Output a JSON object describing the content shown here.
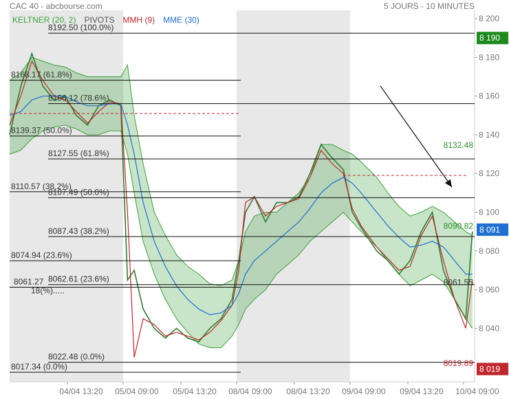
{
  "chart_data": {
    "type": "line",
    "title": "CAC 40 - abcbourse.com",
    "subtitle": "5 JOURS - 10 MINUTES",
    "pivots_label": "PIVOTS",
    "pivots_color": "#555555",
    "xlim": [
      0,
      209
    ],
    "ylim": [
      8012.4,
      8204.3
    ],
    "xticks": [
      {
        "value": 26,
        "label": "04/04 13:20"
      },
      {
        "value": 51,
        "label": "05/04 09:00"
      },
      {
        "value": 77,
        "label": "05/04 13:20"
      },
      {
        "value": 102,
        "label": "08/04 09:00"
      },
      {
        "value": 128,
        "label": "08/04 13:20"
      },
      {
        "value": 153,
        "label": "09/04 09:00"
      },
      {
        "value": 179,
        "label": "09/04 13:20"
      },
      {
        "value": 204,
        "label": "10/04 09:00"
      }
    ],
    "yticks": [
      {
        "value": 8040,
        "label": "8 040"
      },
      {
        "value": 8060,
        "label": "8 060"
      },
      {
        "value": 8080,
        "label": "8 080"
      },
      {
        "value": 8100,
        "label": "8 100"
      },
      {
        "value": 8120,
        "label": "8 120"
      },
      {
        "value": 8140,
        "label": "8 140"
      },
      {
        "value": 8160,
        "label": "8 160"
      },
      {
        "value": 8180,
        "label": "8 180"
      },
      {
        "value": 8200,
        "label": "8 200"
      }
    ],
    "x": [
      0,
      5,
      10,
      15,
      20,
      25,
      30,
      35,
      40,
      45,
      50,
      53,
      56,
      60,
      65,
      70,
      75,
      80,
      85,
      90,
      95,
      100,
      103,
      106,
      110,
      115,
      120,
      125,
      130,
      135,
      140,
      145,
      150,
      154,
      158,
      165,
      170,
      175,
      180,
      185,
      190,
      195,
      200,
      205,
      208
    ],
    "price": {
      "color": "#2f7d2f",
      "values": [
        8140,
        8165,
        8182,
        8165,
        8158,
        8160,
        8150,
        8145,
        8155,
        8158,
        8155,
        8065,
        8070,
        8050,
        8040,
        8035,
        8040,
        8035,
        8033,
        8040,
        8045,
        8055,
        8075,
        8100,
        8108,
        8095,
        8105,
        8105,
        8108,
        8120,
        8135,
        8128,
        8122,
        8100,
        8092,
        8080,
        8075,
        8068,
        8075,
        8090,
        8100,
        8070,
        8055,
        8045,
        8090
      ]
    },
    "keltner": {
      "name": "KELTNER (20, 2)",
      "color": "#3ca03c",
      "upper": [
        8168,
        8172,
        8180,
        8178,
        8176,
        8175,
        8172,
        8170,
        8170,
        8170,
        8170,
        8176,
        8150,
        8125,
        8100,
        8088,
        8078,
        8072,
        8068,
        8063,
        8062,
        8065,
        8075,
        8090,
        8098,
        8100,
        8100,
        8105,
        8110,
        8118,
        8135,
        8135,
        8132,
        8130,
        8126,
        8118,
        8110,
        8103,
        8098,
        8100,
        8103,
        8100,
        8095,
        8090,
        8088
      ],
      "lower": [
        8130,
        8132,
        8138,
        8142,
        8144,
        8145,
        8143,
        8140,
        8140,
        8142,
        8142,
        8130,
        8110,
        8085,
        8068,
        8055,
        8045,
        8038,
        8032,
        8030,
        8030,
        8036,
        8042,
        8050,
        8055,
        8060,
        8068,
        8073,
        8078,
        8085,
        8090,
        8095,
        8100,
        8095,
        8090,
        8082,
        8075,
        8068,
        8062,
        8065,
        8068,
        8064,
        8055,
        8045,
        8040
      ]
    },
    "series": [
      {
        "name": "MMH (9)",
        "color": "#c0272d",
        "values": [
          8145,
          8160,
          8178,
          8168,
          8160,
          8158,
          8152,
          8146,
          8152,
          8157,
          8156,
          8100,
          8025,
          8045,
          8042,
          8036,
          8038,
          8036,
          8034,
          8038,
          8044,
          8052,
          8070,
          8105,
          8108,
          8098,
          8103,
          8105,
          8107,
          8118,
          8132,
          8125,
          8120,
          8102,
          8093,
          8082,
          8076,
          8070,
          8072,
          8088,
          8098,
          8075,
          8055,
          8040,
          8065
        ]
      },
      {
        "name": "MME (30)",
        "color": "#1f6fd1",
        "values": [
          8150,
          8152,
          8158,
          8160,
          8160,
          8160,
          8157,
          8155,
          8155,
          8156,
          8156,
          8145,
          8130,
          8105,
          8085,
          8072,
          8062,
          8055,
          8050,
          8047,
          8048,
          8052,
          8058,
          8068,
          8075,
          8080,
          8085,
          8090,
          8095,
          8102,
          8110,
          8115,
          8118,
          8115,
          8110,
          8100,
          8093,
          8087,
          8082,
          8083,
          8085,
          8082,
          8075,
          8068,
          8068
        ]
      }
    ],
    "fib_left": [
      {
        "value": 8168.17,
        "label": "8168.17  (61.8%)"
      },
      {
        "value": 8139.37,
        "label": "8139.37  (50.0%)"
      },
      {
        "value": 8110.57,
        "label": "8110.57  (38.2%)"
      },
      {
        "value": 8074.94,
        "label": "8074.94  (23.6%)"
      },
      {
        "value": 8061.27,
        "label": "8061.27",
        "sublabel": "18(%)....."
      },
      {
        "value": 8017.34,
        "label": "8017.34  (0.0%)"
      }
    ],
    "fib_right": [
      {
        "value": 8192.5,
        "label": "8192.50  (100.0%)"
      },
      {
        "value": 8156.12,
        "label": "8156.12  (78.6%)"
      },
      {
        "value": 8127.55,
        "label": "8127.55  (61.8%)"
      },
      {
        "value": 8107.49,
        "label": "8107.49  (50.0%)"
      },
      {
        "value": 8087.43,
        "label": "8087.43  (38.2%)"
      },
      {
        "value": 8062.61,
        "label": "8062.61  (23.6%)"
      },
      {
        "value": 8022.48,
        "label": "8022.48  (0.0%)"
      }
    ],
    "pivot_lines": [
      {
        "value": 8151,
        "color": "#c0272d"
      },
      {
        "value": 8119,
        "color": "#c0272d"
      }
    ],
    "right_labels": [
      {
        "value": 8132.48,
        "label": "8132.48",
        "color": "#2f8f2f"
      },
      {
        "value": 8090.82,
        "label": "8090.82",
        "color": "#2f8f2f"
      },
      {
        "value": 8061.55,
        "label": "8061.55",
        "color": "#333333"
      },
      {
        "value": 8019.89,
        "label": "8019.89",
        "color": "#c0272d"
      }
    ],
    "price_tags": [
      {
        "value": 8190,
        "label": "8 190",
        "color": "#1e8a1e"
      },
      {
        "value": 8091,
        "label": "8 091",
        "color": "#1f6fd1"
      },
      {
        "value": 8019,
        "label": "8 019",
        "color": "#c0272d"
      }
    ]
  }
}
